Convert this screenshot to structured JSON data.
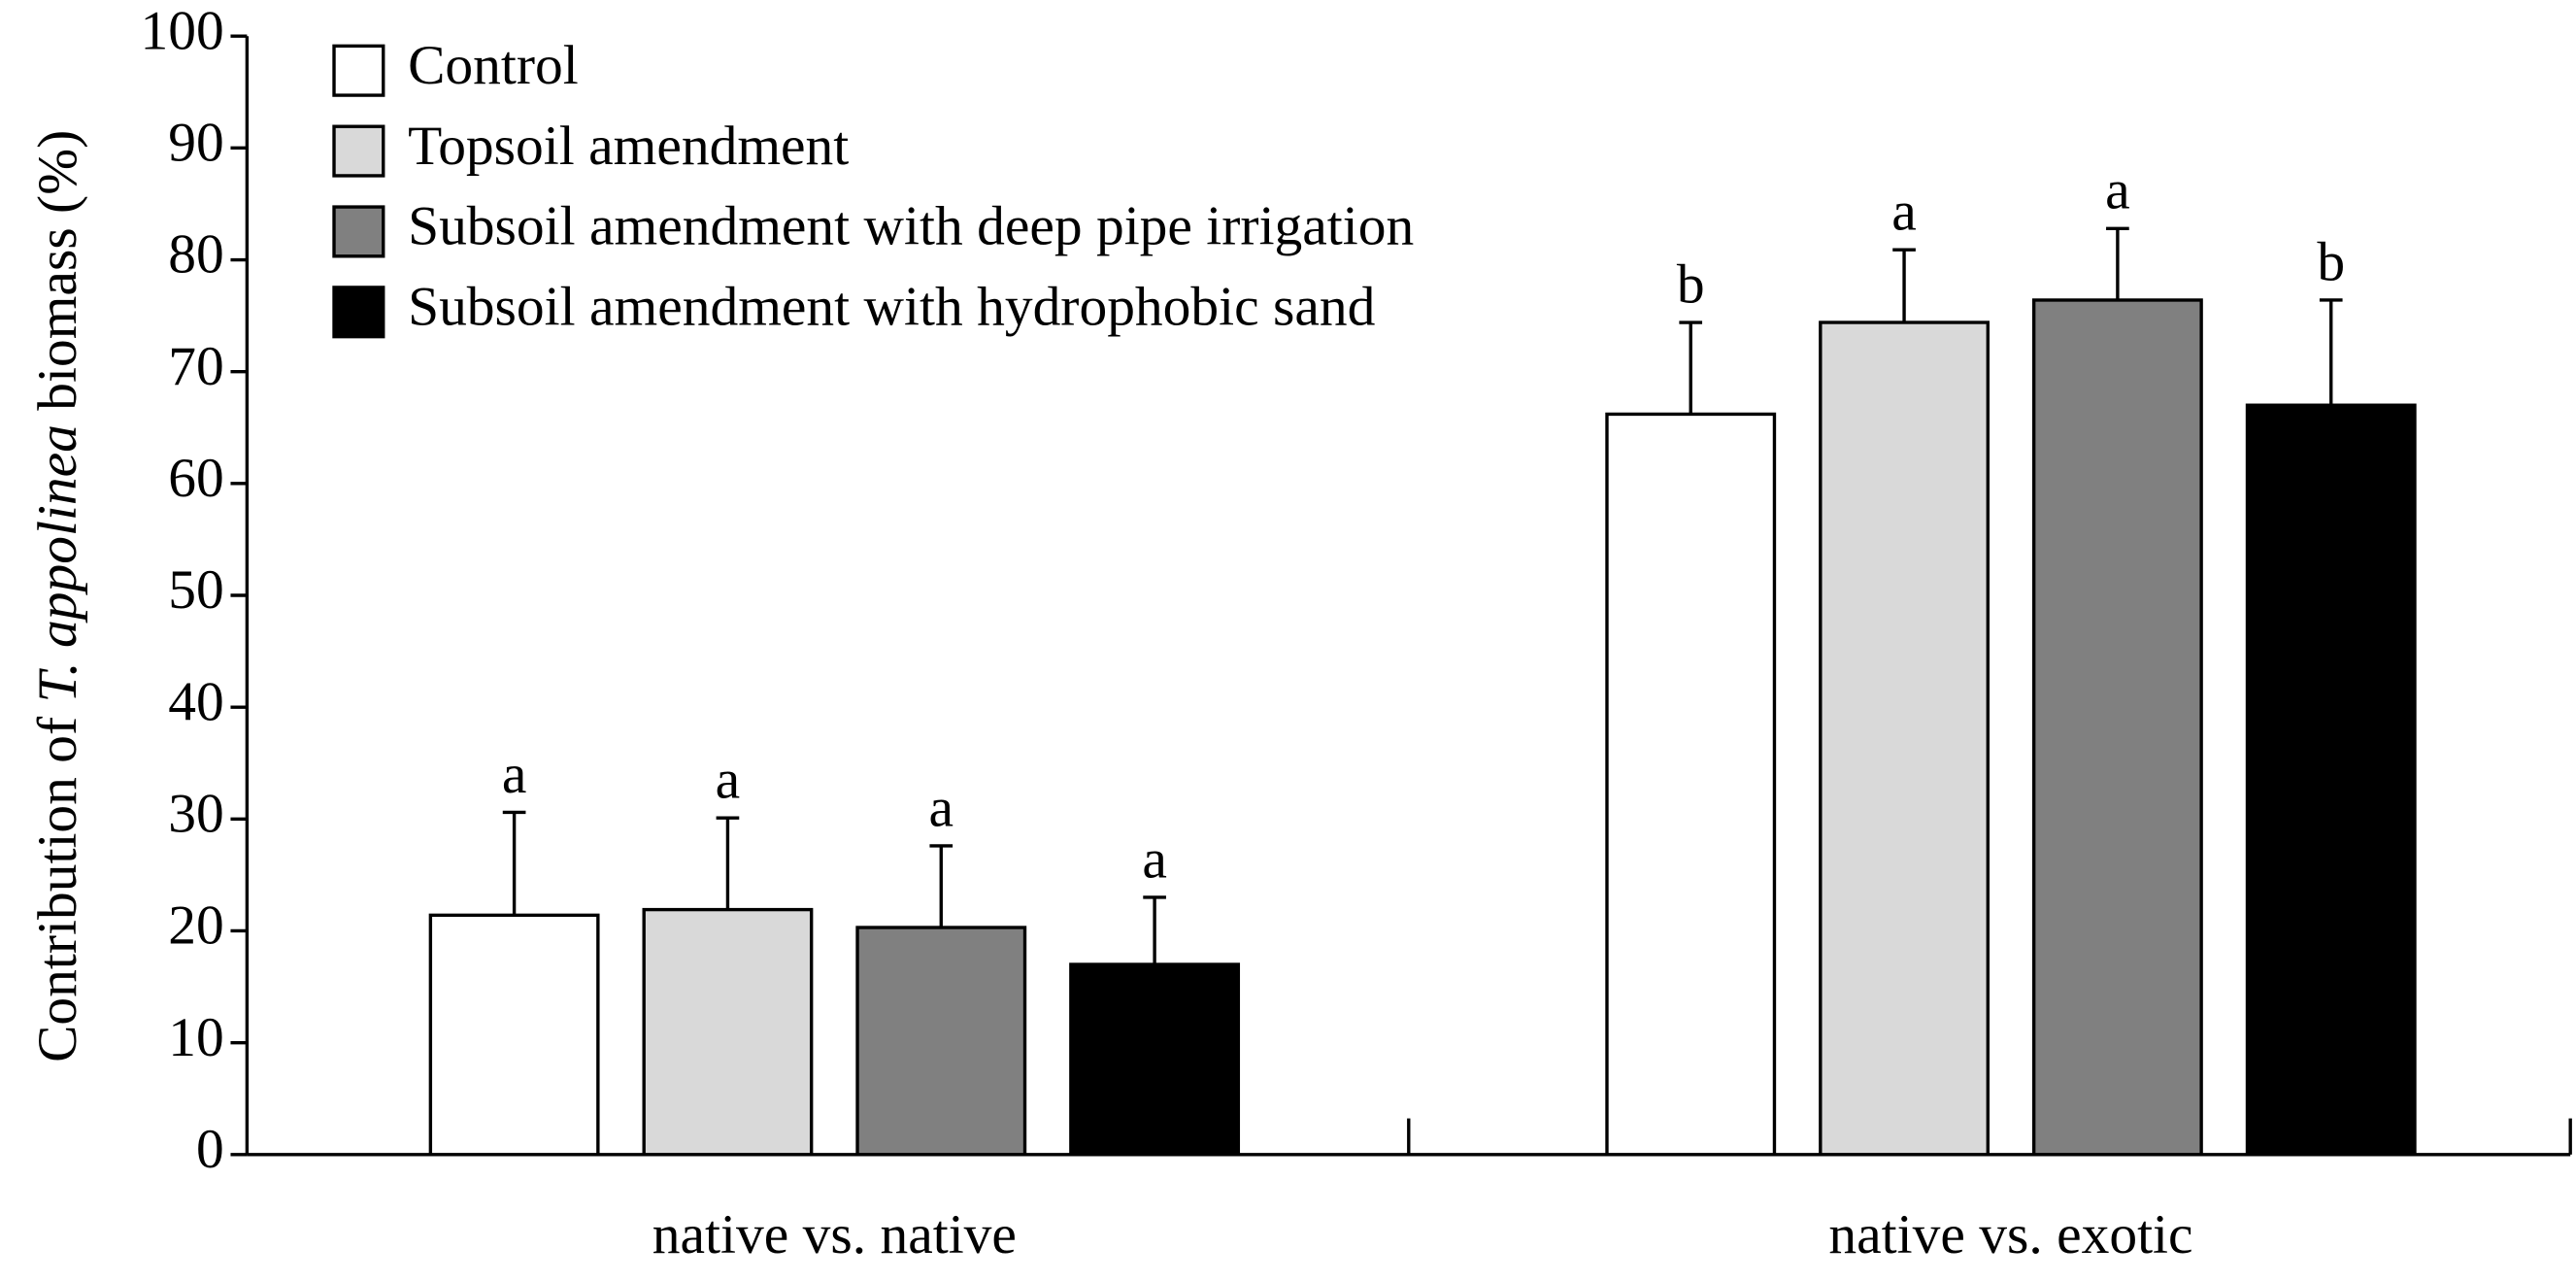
{
  "chart_data": {
    "type": "bar",
    "y_label": {
      "before": "Contribution of ",
      "italic": "T. appolinea",
      "after": " biomass (%)"
    },
    "categories": [
      "native vs. native",
      "native vs. exotic"
    ],
    "ylim": [
      0,
      100
    ],
    "yticks": [
      0,
      10,
      20,
      30,
      40,
      50,
      60,
      70,
      80,
      90,
      100
    ],
    "legend": "top-left",
    "series": [
      {
        "name": "Control",
        "color": "#ffffff",
        "values": [
          21.4,
          66.2
        ],
        "errors": [
          9.2,
          8.2
        ],
        "letters": [
          "a",
          "b"
        ]
      },
      {
        "name": "Topsoil amendment",
        "color": "#d9d9d9",
        "values": [
          21.9,
          74.4
        ],
        "errors": [
          8.2,
          6.5
        ],
        "letters": [
          "a",
          "a"
        ]
      },
      {
        "name": "Subsoil amendment with deep pipe irrigation",
        "color": "#808080",
        "values": [
          20.3,
          76.4
        ],
        "errors": [
          7.3,
          6.4
        ],
        "letters": [
          "a",
          "a"
        ]
      },
      {
        "name": "Subsoil amendment with hydrophobic sand",
        "color": "#000000",
        "values": [
          17.0,
          67.0
        ],
        "errors": [
          6.0,
          9.4
        ],
        "letters": [
          "a",
          "b"
        ]
      }
    ]
  }
}
